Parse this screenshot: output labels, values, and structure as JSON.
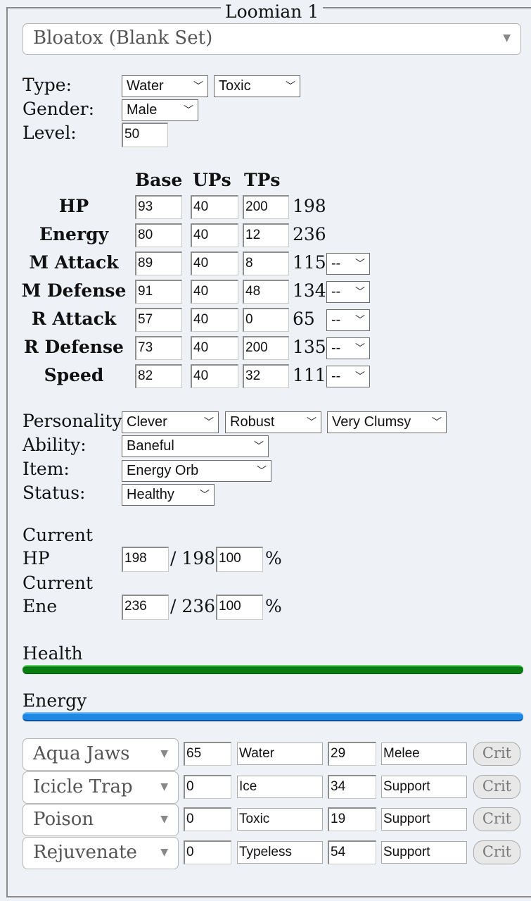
{
  "fieldset_legend": "Loomian 1",
  "set_select": "Bloatox (Blank Set)",
  "labels": {
    "type": "Type:",
    "gender": "Gender:",
    "level": "Level:",
    "personality": "Personality:",
    "ability": "Ability:",
    "item": "Item:",
    "status": "Status:",
    "current_hp_1": "Current",
    "current_hp_2": "HP",
    "current_ene_1": "Current",
    "current_ene_2": "Ene",
    "health": "Health",
    "energy": "Energy",
    "percent": "%"
  },
  "type1": "Water",
  "type2": "Toxic",
  "gender": "Male",
  "level": "50",
  "stat_headers": {
    "base": "Base",
    "ups": "UPs",
    "tps": "TPs"
  },
  "stats": [
    {
      "name": "HP",
      "base": "93",
      "ups": "40",
      "tps": "200",
      "total": "198",
      "nature": null
    },
    {
      "name": "Energy",
      "base": "80",
      "ups": "40",
      "tps": "12",
      "total": "236",
      "nature": null
    },
    {
      "name": "M Attack",
      "base": "89",
      "ups": "40",
      "tps": "8",
      "total": "115",
      "nature": "--"
    },
    {
      "name": "M Defense",
      "base": "91",
      "ups": "40",
      "tps": "48",
      "total": "134",
      "nature": "--"
    },
    {
      "name": "R Attack",
      "base": "57",
      "ups": "40",
      "tps": "0",
      "total": "65",
      "nature": "--"
    },
    {
      "name": "R Defense",
      "base": "73",
      "ups": "40",
      "tps": "200",
      "total": "135",
      "nature": "--"
    },
    {
      "name": "Speed",
      "base": "82",
      "ups": "40",
      "tps": "32",
      "total": "111",
      "nature": "--"
    }
  ],
  "personality": [
    "Clever",
    "Robust",
    "Very Clumsy"
  ],
  "ability": "Baneful",
  "item": "Energy Orb",
  "status": "Healthy",
  "current_hp": {
    "value": "198",
    "max": "/ 198",
    "percent": "100"
  },
  "current_ene": {
    "value": "236",
    "max": "/ 236",
    "percent": "100"
  },
  "health_bar": {
    "percent": 100,
    "color": "#0a7d12"
  },
  "energy_bar": {
    "percent": 100,
    "color": "#1e88e5"
  },
  "moves": [
    {
      "name": "Aqua Jaws",
      "power": "65",
      "type": "Water",
      "energy": "29",
      "category": "Melee",
      "crit": "Crit"
    },
    {
      "name": "Icicle Trap",
      "power": "0",
      "type": "Ice",
      "energy": "34",
      "category": "Support",
      "crit": "Crit"
    },
    {
      "name": "Poison",
      "power": "0",
      "type": "Toxic",
      "energy": "19",
      "category": "Support",
      "crit": "Crit"
    },
    {
      "name": "Rejuvenate",
      "power": "0",
      "type": "Typeless",
      "energy": "54",
      "category": "Support",
      "crit": "Crit"
    }
  ]
}
